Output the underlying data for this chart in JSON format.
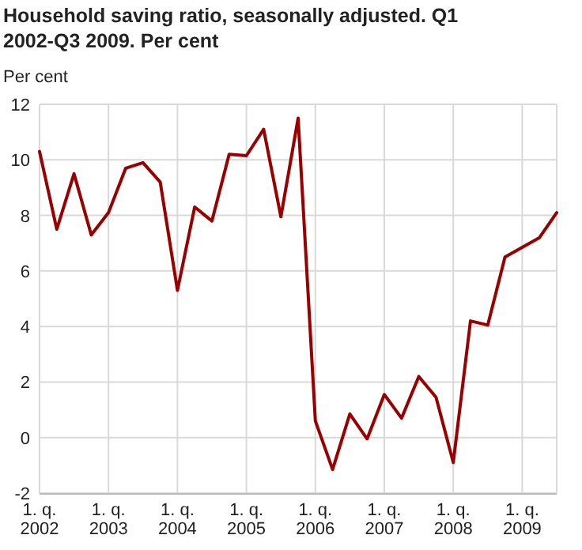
{
  "chart_data": {
    "type": "line",
    "title": "Household saving ratio, seasonally adjusted. Q1 2002-Q3 2009. Per cent",
    "ylabel": "Per cent",
    "categories": [
      "1. q.\n2002",
      null,
      null,
      null,
      "1. q.\n2003",
      null,
      null,
      null,
      "1. q.\n2004",
      null,
      null,
      null,
      "1. q.\n2005",
      null,
      null,
      null,
      "1. q.\n2006",
      null,
      null,
      null,
      "1. q.\n2007",
      null,
      null,
      null,
      "1. q.\n2008",
      null,
      null,
      null,
      "1. q.\n2009",
      null,
      null
    ],
    "series": [
      {
        "color": "#990000",
        "values": [
          10.3,
          7.5,
          9.5,
          7.3,
          8.1,
          9.7,
          9.9,
          9.2,
          5.3,
          8.3,
          7.8,
          10.2,
          10.15,
          11.1,
          7.95,
          11.5,
          0.6,
          -1.15,
          0.85,
          -0.05,
          1.55,
          0.7,
          2.2,
          1.45,
          -0.9,
          4.2,
          4.05,
          6.5,
          6.85,
          7.2,
          8.1
        ]
      }
    ],
    "ylim": [
      -2,
      12
    ],
    "yticks": [
      -2,
      0,
      2,
      4,
      6,
      8,
      10,
      12
    ],
    "grid": true,
    "marker": "none",
    "line_style": "solid"
  }
}
